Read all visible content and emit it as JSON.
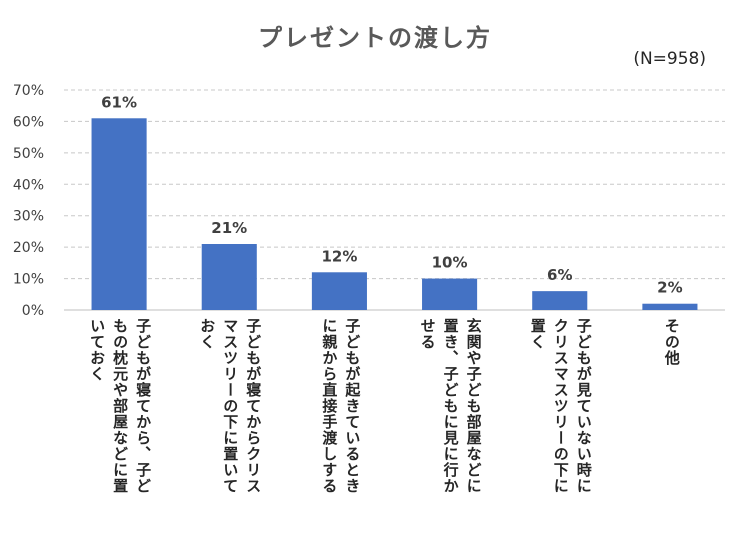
{
  "chart_data": {
    "type": "bar",
    "title": "プレゼントの渡し方",
    "note": "(N=958)",
    "categories": [
      [
        "子どもが寝てから、子ど",
        "もの枕元や部屋などに置",
        "いておく"
      ],
      [
        "子どもが寝てからクリス",
        "マスツリーの下に置いて",
        "おく"
      ],
      [
        "子どもが起きているとき",
        "に親から直接手渡しする"
      ],
      [
        "玄関や子ども部屋などに",
        "置き、子どもに見に行か",
        "せる"
      ],
      [
        "子どもが見ていない時に",
        "クリスマスツリーの下に",
        "置く"
      ],
      [
        "その他"
      ]
    ],
    "values": [
      61,
      21,
      12,
      10,
      6,
      2
    ],
    "data_labels": [
      "61%",
      "21%",
      "12%",
      "10%",
      "6%",
      "2%"
    ],
    "ylim": [
      0,
      70
    ],
    "yticks": [
      "0%",
      "10%",
      "20%",
      "30%",
      "40%",
      "50%",
      "60%",
      "70%"
    ],
    "grid": true,
    "xlabel": "",
    "ylabel": "",
    "colors": {
      "bar": "#4472C4",
      "grid": "#C8C8C8",
      "axis": "#BFBFBF"
    }
  }
}
